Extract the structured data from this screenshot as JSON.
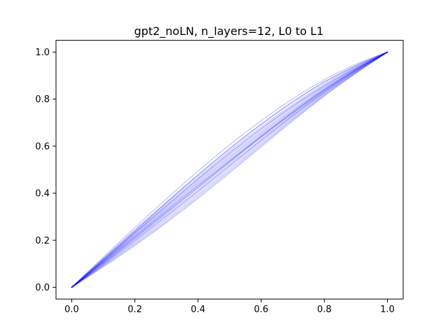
{
  "chart_data": {
    "type": "line",
    "title": "gpt2_noLN, n_layers=12, L0 to L1",
    "xlabel": "",
    "ylabel": "",
    "xlim": [
      -0.05,
      1.05
    ],
    "ylim": [
      -0.05,
      1.05
    ],
    "x_ticks": [
      "0.0",
      "0.2",
      "0.4",
      "0.6",
      "0.8",
      "1.0"
    ],
    "y_ticks": [
      "0.0",
      "0.2",
      "0.4",
      "0.6",
      "0.8",
      "1.0"
    ],
    "grid": false,
    "legend": "none",
    "line_color": "#0000ff",
    "line_opacity": 0.2,
    "x": [
      0.0,
      0.1,
      0.2,
      0.3,
      0.4,
      0.5,
      0.6,
      0.7,
      0.8,
      0.9,
      1.0
    ],
    "series": [
      {
        "values": [
          0.0,
          0.128,
          0.254,
          0.376,
          0.494,
          0.605,
          0.708,
          0.801,
          0.882,
          0.948,
          1.0
        ]
      },
      {
        "values": [
          0.0,
          0.124,
          0.245,
          0.363,
          0.478,
          0.588,
          0.692,
          0.788,
          0.872,
          0.942,
          1.0
        ]
      },
      {
        "values": [
          0.0,
          0.121,
          0.24,
          0.357,
          0.47,
          0.579,
          0.682,
          0.778,
          0.864,
          0.938,
          1.0
        ]
      },
      {
        "values": [
          0.0,
          0.118,
          0.235,
          0.35,
          0.462,
          0.57,
          0.673,
          0.77,
          0.858,
          0.934,
          1.0
        ]
      },
      {
        "values": [
          0.0,
          0.116,
          0.231,
          0.344,
          0.455,
          0.562,
          0.665,
          0.763,
          0.852,
          0.931,
          1.0
        ]
      },
      {
        "values": [
          0.0,
          0.113,
          0.226,
          0.338,
          0.448,
          0.555,
          0.658,
          0.756,
          0.847,
          0.928,
          1.0
        ]
      },
      {
        "values": [
          0.0,
          0.111,
          0.222,
          0.333,
          0.442,
          0.549,
          0.652,
          0.751,
          0.843,
          0.926,
          1.0
        ]
      },
      {
        "values": [
          0.0,
          0.108,
          0.217,
          0.326,
          0.435,
          0.542,
          0.646,
          0.746,
          0.839,
          0.924,
          1.0
        ]
      },
      {
        "values": [
          0.0,
          0.106,
          0.212,
          0.32,
          0.428,
          0.535,
          0.64,
          0.741,
          0.836,
          0.922,
          1.0
        ]
      },
      {
        "values": [
          0.0,
          0.103,
          0.208,
          0.314,
          0.421,
          0.528,
          0.634,
          0.736,
          0.832,
          0.92,
          1.0
        ]
      },
      {
        "values": [
          0.0,
          0.1,
          0.202,
          0.306,
          0.412,
          0.519,
          0.626,
          0.73,
          0.828,
          0.918,
          1.0
        ]
      },
      {
        "values": [
          0.0,
          0.096,
          0.195,
          0.297,
          0.402,
          0.51,
          0.618,
          0.724,
          0.824,
          0.915,
          1.0
        ]
      },
      {
        "values": [
          0.0,
          0.093,
          0.189,
          0.289,
          0.393,
          0.501,
          0.61,
          0.717,
          0.82,
          0.913,
          1.0
        ]
      },
      {
        "values": [
          0.0,
          0.09,
          0.183,
          0.281,
          0.385,
          0.493,
          0.603,
          0.712,
          0.816,
          0.911,
          1.0
        ]
      },
      {
        "values": [
          0.0,
          0.087,
          0.178,
          0.275,
          0.378,
          0.486,
          0.597,
          0.707,
          0.813,
          0.91,
          1.0
        ]
      },
      {
        "values": [
          0.0,
          0.114,
          0.23,
          0.346,
          0.46,
          0.57,
          0.674,
          0.77,
          0.856,
          0.932,
          1.0
        ]
      },
      {
        "values": [
          0.0,
          0.11,
          0.218,
          0.326,
          0.433,
          0.538,
          0.641,
          0.741,
          0.836,
          0.923,
          1.0
        ]
      },
      {
        "values": [
          0.0,
          0.105,
          0.21,
          0.316,
          0.424,
          0.533,
          0.641,
          0.745,
          0.841,
          0.926,
          1.0
        ]
      },
      {
        "values": [
          0.0,
          0.117,
          0.238,
          0.36,
          0.478,
          0.59,
          0.694,
          0.789,
          0.873,
          0.942,
          1.0
        ]
      },
      {
        "values": [
          0.0,
          0.099,
          0.2,
          0.303,
          0.409,
          0.517,
          0.625,
          0.73,
          0.829,
          0.919,
          1.0
        ]
      }
    ]
  }
}
